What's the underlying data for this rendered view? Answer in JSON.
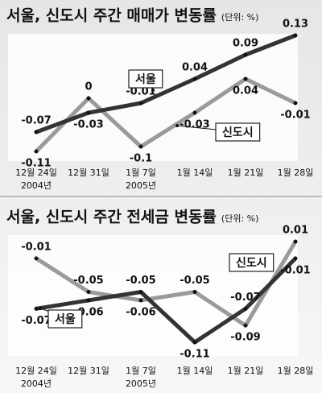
{
  "chart_data": [
    {
      "type": "line",
      "title": "서울, 신도시 주간 매매가 변동률",
      "unit": "(단위: %)",
      "categories": [
        "12월 24일",
        "12월 31일",
        "1월 7일",
        "1월 14일",
        "1월 21일",
        "1월 28일"
      ],
      "category_sublabels": [
        "2004년",
        null,
        "2005년",
        null,
        null,
        null
      ],
      "series": [
        {
          "name": "서울",
          "color": "#333333",
          "values": [
            -0.07,
            -0.03,
            -0.01,
            0.04,
            0.09,
            0.13
          ]
        },
        {
          "name": "신도시",
          "color": "#9a9a9a",
          "values": [
            -0.11,
            0,
            -0.1,
            -0.03,
            0.04,
            -0.01
          ]
        }
      ]
    },
    {
      "type": "line",
      "title": "서울, 신도시 주간 전세금 변동률",
      "unit": "(단위: %)",
      "categories": [
        "12월 24일",
        "12월 31일",
        "1월 7일",
        "1월 14일",
        "1월 21일",
        "1월 28일"
      ],
      "category_sublabels": [
        "2004년",
        null,
        "2005년",
        null,
        null,
        null
      ],
      "series": [
        {
          "name": "서울",
          "color": "#333333",
          "values": [
            -0.07,
            -0.06,
            -0.05,
            -0.11,
            -0.07,
            -0.01
          ]
        },
        {
          "name": "신도시",
          "color": "#9a9a9a",
          "values": [
            -0.01,
            -0.05,
            -0.06,
            -0.05,
            -0.09,
            0.01
          ]
        }
      ]
    }
  ]
}
